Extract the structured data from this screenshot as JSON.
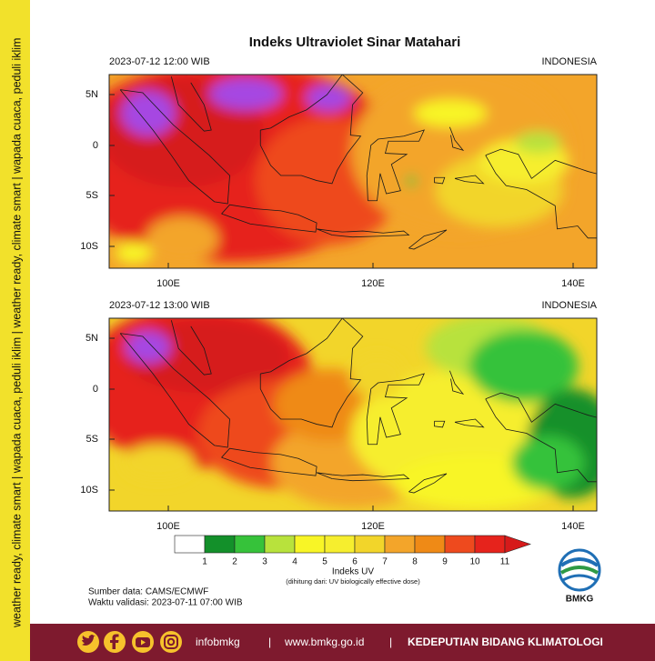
{
  "side_banner": "weather ready, climate smart  |  wapada cuaca, peduli iklim  |  weather ready, climate smart  |  wapada cuaca, peduli iklim",
  "title": "Indeks Ultraviolet Sinar Matahari",
  "maps": [
    {
      "time": "2023-07-12  12:00 WIB",
      "region": "INDONESIA"
    },
    {
      "time": "2023-07-12  13:00 WIB",
      "region": "INDONESIA"
    }
  ],
  "lat_labels": [
    "5N",
    "0",
    "5S",
    "10S"
  ],
  "lon_labels": [
    "100E",
    "120E",
    "140E"
  ],
  "colorbar": {
    "label": "Indeks UV",
    "note": "(dihitung dari: UV biologically effective dose)",
    "ticks": [
      1,
      2,
      3,
      4,
      5,
      6,
      7,
      8,
      9,
      10,
      11
    ],
    "colors": [
      "#ffffff",
      "#13902a",
      "#36c23a",
      "#b8e23c",
      "#f8f526",
      "#f6ee2e",
      "#f2d52a",
      "#f3a52a",
      "#ef8a16",
      "#ee4a1e",
      "#e6231c",
      "#d61a1a",
      "#a646e2"
    ]
  },
  "source": [
    "Sumber data: CAMS/ECMWF",
    "Waktu validasi: 2023-07-11 07:00 WIB"
  ],
  "logo": "BMKG",
  "footer": {
    "handle": "infobmkg",
    "separators": [
      "|",
      "|"
    ],
    "url": "www.bmkg.go.id",
    "unit": "KEDEPUTIAN BIDANG KLIMATOLOGI"
  }
}
